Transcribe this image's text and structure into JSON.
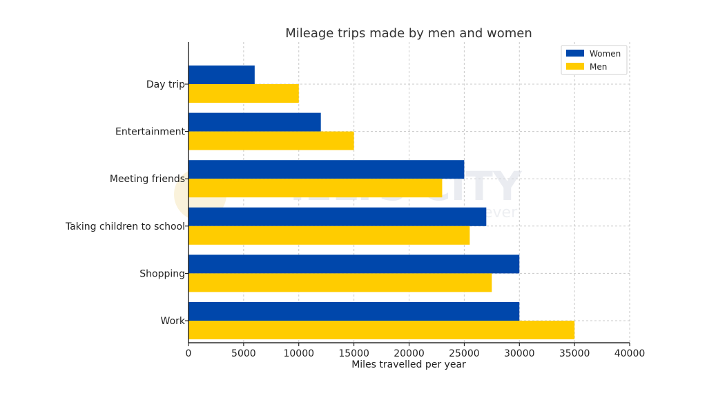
{
  "chart_data": {
    "type": "bar",
    "orientation": "horizontal",
    "title": "Mileage trips made by men and women",
    "xlabel": "Miles travelled per year",
    "ylabel": "",
    "categories": [
      "Day trip",
      "Entertainment",
      "Meeting friends",
      "Taking children to school",
      "Shopping",
      "Work"
    ],
    "series": [
      {
        "name": "Women",
        "color": "#0047AB",
        "values": [
          6000,
          12000,
          25000,
          27000,
          30000,
          30000
        ]
      },
      {
        "name": "Men",
        "color": "#FFCC00",
        "values": [
          10000,
          15000,
          23000,
          25500,
          27500,
          35000
        ]
      }
    ],
    "xlim": [
      0,
      40000
    ],
    "xticks": [
      "0",
      "5000",
      "10000",
      "15000",
      "20000",
      "25000",
      "30000",
      "35000",
      "40000"
    ],
    "grid": true,
    "legend_position": "top-right"
  },
  "watermark": {
    "text": "IELTS CITY",
    "subtext": "ever"
  }
}
